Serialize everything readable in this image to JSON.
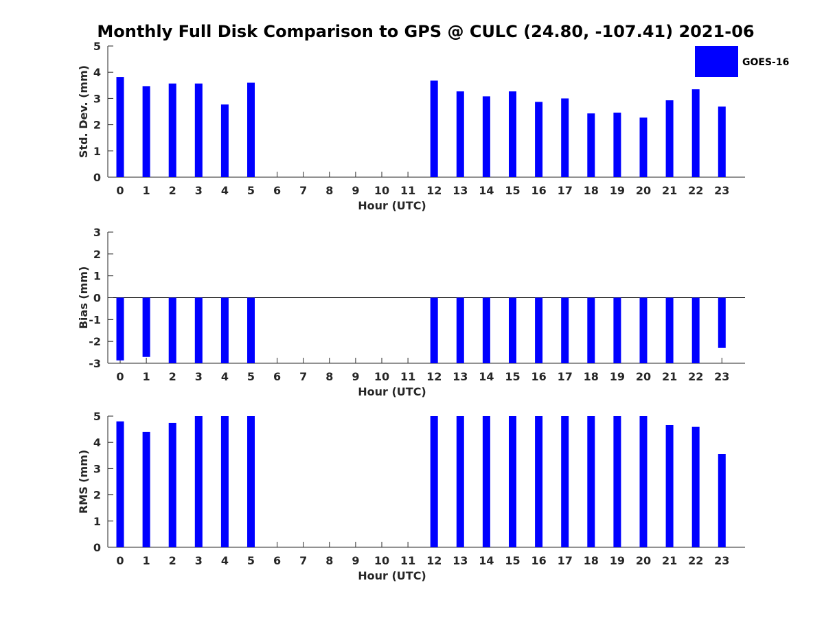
{
  "title": "Monthly Full Disk Comparison to GPS @ CULC (24.80, -107.41) 2021-06",
  "legend": {
    "label": "GOES-16",
    "placement": "top-right"
  },
  "colors": {
    "bar": "#0000ff",
    "axis": "#262626",
    "title": "#000000"
  },
  "chart_data": [
    {
      "type": "bar",
      "title": "",
      "xlabel": "Hour (UTC)",
      "ylabel": "Std. Dev. (mm)",
      "ylim": [
        0,
        5
      ],
      "yticks": [
        0,
        1,
        2,
        3,
        4,
        5
      ],
      "grid": false,
      "categories": [
        "0",
        "1",
        "2",
        "3",
        "4",
        "5",
        "6",
        "7",
        "8",
        "9",
        "10",
        "11",
        "12",
        "13",
        "14",
        "15",
        "16",
        "17",
        "18",
        "19",
        "20",
        "21",
        "22",
        "23"
      ],
      "series": [
        {
          "name": "GOES-16",
          "values": [
            3.82,
            3.47,
            3.57,
            3.57,
            2.77,
            3.6,
            null,
            null,
            null,
            null,
            null,
            null,
            3.68,
            3.27,
            3.08,
            3.27,
            2.87,
            3.0,
            2.43,
            2.46,
            2.27,
            2.93,
            3.35,
            2.69
          ]
        }
      ]
    },
    {
      "type": "bar",
      "title": "",
      "xlabel": "Hour (UTC)",
      "ylabel": "Bias (mm)",
      "ylim": [
        -3,
        3
      ],
      "yticks": [
        -3,
        -2,
        -1,
        0,
        1,
        2,
        3
      ],
      "grid": false,
      "categories": [
        "0",
        "1",
        "2",
        "3",
        "4",
        "5",
        "6",
        "7",
        "8",
        "9",
        "10",
        "11",
        "12",
        "13",
        "14",
        "15",
        "16",
        "17",
        "18",
        "19",
        "20",
        "21",
        "22",
        "23"
      ],
      "series": [
        {
          "name": "GOES-16",
          "values": [
            -2.87,
            -2.71,
            -3.0,
            -3.0,
            -3.0,
            -3.0,
            null,
            null,
            null,
            null,
            null,
            null,
            -3.0,
            -3.0,
            -3.0,
            -3.0,
            -3.0,
            -3.0,
            -3.0,
            -3.0,
            -3.0,
            -3.0,
            -3.0,
            -2.3
          ]
        }
      ]
    },
    {
      "type": "bar",
      "title": "",
      "xlabel": "Hour (UTC)",
      "ylabel": "RMS (mm)",
      "ylim": [
        0,
        5
      ],
      "yticks": [
        0,
        1,
        2,
        3,
        4,
        5
      ],
      "grid": false,
      "categories": [
        "0",
        "1",
        "2",
        "3",
        "4",
        "5",
        "6",
        "7",
        "8",
        "9",
        "10",
        "11",
        "12",
        "13",
        "14",
        "15",
        "16",
        "17",
        "18",
        "19",
        "20",
        "21",
        "22",
        "23"
      ],
      "series": [
        {
          "name": "GOES-16",
          "values": [
            4.8,
            4.4,
            4.74,
            5.0,
            5.0,
            5.0,
            null,
            null,
            null,
            null,
            null,
            null,
            5.0,
            5.0,
            5.0,
            5.0,
            5.0,
            5.0,
            5.0,
            5.0,
            5.0,
            4.66,
            4.59,
            3.56
          ]
        }
      ]
    }
  ]
}
